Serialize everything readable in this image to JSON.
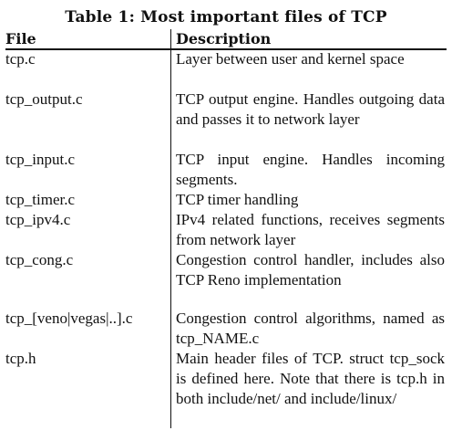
{
  "caption": "Table 1: Most important files of TCP",
  "headers": {
    "file": "File",
    "description": "Description"
  },
  "rows": [
    {
      "file": "tcp.c",
      "description": "Layer between user and kernel space"
    },
    {
      "file": "tcp_output.c",
      "description": "TCP output engine. Handles outgoing data and passes it to network layer"
    },
    {
      "file": "tcp_input.c",
      "description": "TCP input engine. Handles incoming segments."
    },
    {
      "file": "tcp_timer.c",
      "description": "TCP timer handling"
    },
    {
      "file": "tcp_ipv4.c",
      "description": "IPv4 related functions, receives segments from network layer"
    },
    {
      "file": "tcp_cong.c",
      "description": "Congestion control handler, includes also TCP Reno implementation"
    },
    {
      "file": "tcp_[veno|vegas|..].c",
      "description": "Congestion control algorithms, named as tcp_NAME.c"
    },
    {
      "file": "tcp.h",
      "description": "Main header files of TCP. struct tcp_sock is defined here. Note that there is tcp.h in both include/net/ and include/linux/"
    }
  ]
}
